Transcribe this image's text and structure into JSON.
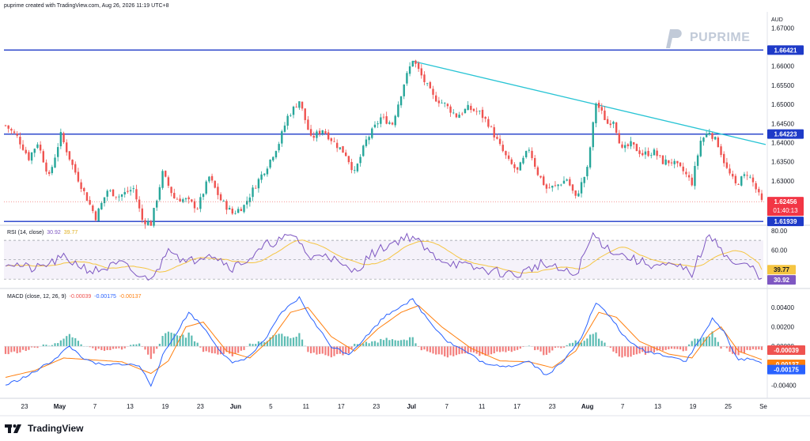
{
  "header": {
    "text": "puprime created with TradingView.com, Aug 26, 2026 11:19 UTC+8"
  },
  "watermark": {
    "brand": "PUPRIME"
  },
  "footer": {
    "brand": "TradingView"
  },
  "colors": {
    "up": "#26a69a",
    "down": "#ef5350",
    "hline": "#1e3ac8",
    "trend": "#28c4d4",
    "rsi": "#7e57c2",
    "rsi_ma": "#f5c542",
    "macd": "#2962ff",
    "signal": "#ff7f0e"
  },
  "chart_data": [
    {
      "type": "candlestick",
      "symbol": "AUD",
      "currency_label": "AUD",
      "x_ticks": [
        "23",
        "May",
        "7",
        "13",
        "19",
        "23",
        "Jun",
        "5",
        "11",
        "17",
        "23",
        "Jul",
        "7",
        "11",
        "17",
        "23",
        "Aug",
        "7",
        "13",
        "19",
        "25",
        "Se"
      ],
      "y_ticks": [
        "1.67000",
        "1.66000",
        "1.65500",
        "1.65000",
        "1.64500",
        "1.64000",
        "1.63500",
        "1.63000"
      ],
      "ylim": [
        1.6186,
        1.6742
      ],
      "horizontal_levels": [
        "1.66421",
        "1.64223",
        "1.61939"
      ],
      "last_price": "1.62456",
      "countdown": "01:40:13",
      "trendline": {
        "start_value": 1.6613,
        "end_value": 1.6395
      },
      "path": [
        [
          0,
          1.6445
        ],
        [
          4,
          1.6415
        ],
        [
          8,
          1.636
        ],
        [
          11,
          1.64
        ],
        [
          15,
          1.631
        ],
        [
          19,
          1.642
        ],
        [
          23,
          1.634
        ],
        [
          27,
          1.627
        ],
        [
          31,
          1.6205
        ],
        [
          35,
          1.6275
        ],
        [
          39,
          1.626
        ],
        [
          44,
          1.628
        ],
        [
          47,
          1.6198
        ],
        [
          50,
          1.6188
        ],
        [
          54,
          1.632
        ],
        [
          58,
          1.6255
        ],
        [
          62,
          1.625
        ],
        [
          66,
          1.623
        ],
        [
          70,
          1.631
        ],
        [
          74,
          1.625
        ],
        [
          78,
          1.6215
        ],
        [
          82,
          1.6235
        ],
        [
          86,
          1.629
        ],
        [
          90,
          1.634
        ],
        [
          94,
          1.64
        ],
        [
          97,
          1.6468
        ],
        [
          101,
          1.651
        ],
        [
          105,
          1.641
        ],
        [
          109,
          1.6435
        ],
        [
          113,
          1.64
        ],
        [
          117,
          1.637
        ],
        [
          120,
          1.632
        ],
        [
          124,
          1.6405
        ],
        [
          129,
          1.6465
        ],
        [
          133,
          1.645
        ],
        [
          137,
          1.6555
        ],
        [
          140,
          1.6618
        ],
        [
          144,
          1.656
        ],
        [
          147,
          1.652
        ],
        [
          151,
          1.65
        ],
        [
          155,
          1.647
        ],
        [
          159,
          1.649
        ],
        [
          163,
          1.6478
        ],
        [
          166,
          1.645
        ],
        [
          170,
          1.639
        ],
        [
          173,
          1.635
        ],
        [
          176,
          1.6325
        ],
        [
          180,
          1.6385
        ],
        [
          183,
          1.632
        ],
        [
          186,
          1.628
        ],
        [
          189,
          1.6285
        ],
        [
          193,
          1.6305
        ],
        [
          196,
          1.6255
        ],
        [
          200,
          1.633
        ],
        [
          203,
          1.6505
        ],
        [
          207,
          1.645
        ],
        [
          209,
          1.646
        ],
        [
          212,
          1.638
        ],
        [
          215,
          1.6395
        ],
        [
          219,
          1.637
        ],
        [
          223,
          1.6375
        ],
        [
          226,
          1.635
        ],
        [
          229,
          1.635
        ],
        [
          233,
          1.6325
        ],
        [
          236,
          1.6295
        ],
        [
          239,
          1.6405
        ],
        [
          242,
          1.643
        ],
        [
          245,
          1.6395
        ],
        [
          248,
          1.633
        ],
        [
          251,
          1.629
        ],
        [
          253,
          1.6305
        ],
        [
          255,
          1.632
        ],
        [
          257,
          1.6295
        ],
        [
          260,
          1.6245
        ]
      ],
      "rsi": {
        "title": "RSI (14, close)",
        "value": "30.92",
        "ma_value": "39.77",
        "y_ticks": [
          "80.00",
          "60.00"
        ],
        "ylim": [
          22,
          84
        ],
        "bands": [
          70,
          50,
          30
        ],
        "path": [
          [
            0,
            48
          ],
          [
            10,
            40
          ],
          [
            20,
            52
          ],
          [
            30,
            38
          ],
          [
            40,
            46
          ],
          [
            47,
            30
          ],
          [
            52,
            36
          ],
          [
            56,
            65
          ],
          [
            62,
            46
          ],
          [
            70,
            58
          ],
          [
            78,
            42
          ],
          [
            86,
            55
          ],
          [
            90,
            66
          ],
          [
            96,
            72
          ],
          [
            100,
            74
          ],
          [
            105,
            50
          ],
          [
            110,
            58
          ],
          [
            116,
            42
          ],
          [
            120,
            38
          ],
          [
            126,
            56
          ],
          [
            132,
            66
          ],
          [
            137,
            73
          ],
          [
            140,
            74
          ],
          [
            146,
            56
          ],
          [
            152,
            48
          ],
          [
            160,
            42
          ],
          [
            168,
            38
          ],
          [
            176,
            34
          ],
          [
            184,
            46
          ],
          [
            190,
            40
          ],
          [
            196,
            34
          ],
          [
            202,
            76
          ],
          [
            207,
            62
          ],
          [
            212,
            55
          ],
          [
            218,
            48
          ],
          [
            224,
            44
          ],
          [
            232,
            42
          ],
          [
            236,
            36
          ],
          [
            241,
            70
          ],
          [
            244,
            73
          ],
          [
            248,
            52
          ],
          [
            252,
            43
          ],
          [
            255,
            45
          ],
          [
            258,
            38
          ],
          [
            260,
            30.9
          ]
        ]
      },
      "macd": {
        "title": "MACD (close, 12, 26, 9)",
        "hist_value": "-0.00039",
        "macd_value": "-0.00175",
        "signal_value": "-0.00137",
        "y_ticks": [
          "0.00400",
          "0.00200",
          "0.00000",
          "-0.00200",
          "-0.00400"
        ],
        "ylim": [
          -0.0052,
          0.0058
        ],
        "macd_path": [
          [
            0,
            -0.004
          ],
          [
            8,
            -0.003
          ],
          [
            16,
            -0.0015
          ],
          [
            22,
            0.0
          ],
          [
            28,
            -0.0015
          ],
          [
            34,
            -0.002
          ],
          [
            40,
            -0.0018
          ],
          [
            46,
            -0.002
          ],
          [
            50,
            -0.004
          ],
          [
            54,
            -0.001
          ],
          [
            58,
            0.001
          ],
          [
            63,
            0.0035
          ],
          [
            68,
            0.002
          ],
          [
            74,
            -0.0005
          ],
          [
            78,
            -0.0018
          ],
          [
            84,
            -0.001
          ],
          [
            90,
            0.001
          ],
          [
            95,
            0.0035
          ],
          [
            101,
            0.005
          ],
          [
            106,
            0.0025
          ],
          [
            112,
            0.0
          ],
          [
            118,
            -0.0008
          ],
          [
            124,
            0.001
          ],
          [
            130,
            0.003
          ],
          [
            136,
            0.0042
          ],
          [
            140,
            0.0048
          ],
          [
            146,
            0.0025
          ],
          [
            152,
            0.0005
          ],
          [
            158,
            -0.0005
          ],
          [
            166,
            -0.002
          ],
          [
            174,
            -0.002
          ],
          [
            180,
            -0.0015
          ],
          [
            186,
            -0.003
          ],
          [
            192,
            -0.0015
          ],
          [
            198,
            0.001
          ],
          [
            203,
            0.0045
          ],
          [
            208,
            0.003
          ],
          [
            214,
            0.0005
          ],
          [
            220,
            -0.0005
          ],
          [
            228,
            -0.001
          ],
          [
            234,
            -0.0015
          ],
          [
            239,
            0.0008
          ],
          [
            243,
            0.0028
          ],
          [
            247,
            0.0015
          ],
          [
            252,
            -0.0015
          ],
          [
            256,
            -0.0012
          ],
          [
            260,
            -0.00175
          ]
        ],
        "signal_path": [
          [
            0,
            -0.0032
          ],
          [
            10,
            -0.0025
          ],
          [
            20,
            -0.0012
          ],
          [
            30,
            -0.0014
          ],
          [
            40,
            -0.0016
          ],
          [
            50,
            -0.0028
          ],
          [
            56,
            -0.0015
          ],
          [
            62,
            0.002
          ],
          [
            68,
            0.0025
          ],
          [
            76,
            -0.0005
          ],
          [
            84,
            -0.0012
          ],
          [
            92,
            0.001
          ],
          [
            98,
            0.0035
          ],
          [
            104,
            0.004
          ],
          [
            112,
            0.001
          ],
          [
            120,
            -0.0005
          ],
          [
            128,
            0.0018
          ],
          [
            136,
            0.0035
          ],
          [
            142,
            0.0042
          ],
          [
            150,
            0.002
          ],
          [
            160,
            -0.0002
          ],
          [
            170,
            -0.0015
          ],
          [
            180,
            -0.0016
          ],
          [
            188,
            -0.0022
          ],
          [
            196,
            -0.0005
          ],
          [
            204,
            0.0035
          ],
          [
            210,
            0.003
          ],
          [
            218,
            0.0005
          ],
          [
            228,
            -0.0008
          ],
          [
            236,
            -0.0012
          ],
          [
            242,
            0.0012
          ],
          [
            246,
            0.002
          ],
          [
            252,
            -0.0005
          ],
          [
            260,
            -0.00137
          ]
        ]
      }
    }
  ]
}
